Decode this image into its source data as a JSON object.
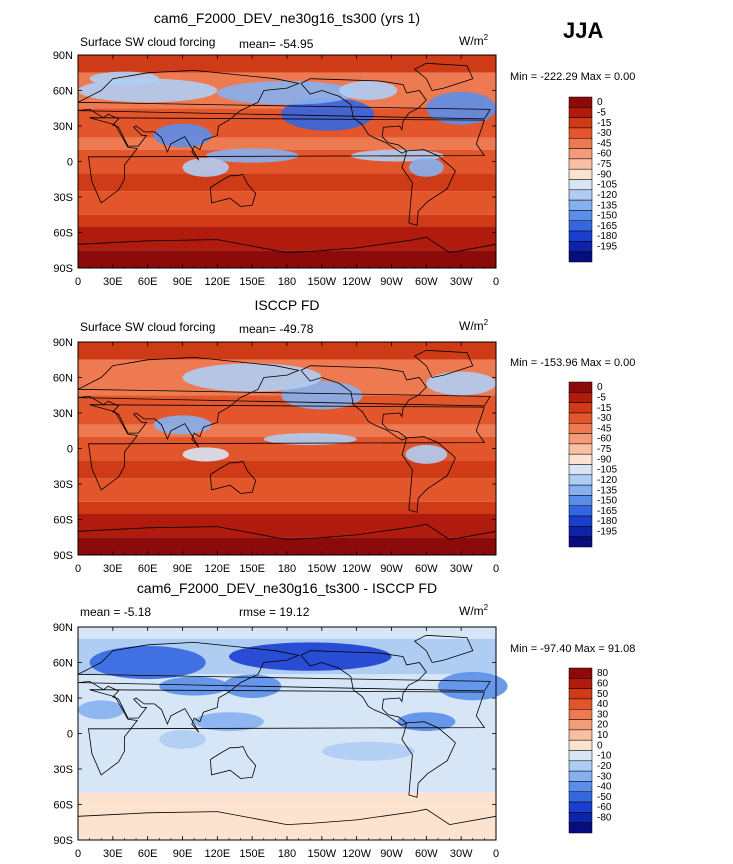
{
  "season": "JJA",
  "unit": "W/m",
  "unit_sup": "2",
  "panels": [
    {
      "title": "cam6_F2000_DEV_ne30g16_ts300 (yrs 1)",
      "left": "Surface SW cloud forcing",
      "mid": "mean=  -54.95",
      "minmax": "Min = -222.29  Max =    0.00"
    },
    {
      "title": "ISCCP FD",
      "left": "Surface SW cloud forcing",
      "mid": "mean=  -49.78",
      "minmax": "Min = -153.96  Max =    0.00"
    },
    {
      "title": "cam6_F2000_DEV_ne30g16_ts300 - ISCCP FD",
      "left": "mean =   -5.18",
      "mid": "rmse =   19.12",
      "minmax": "Min =  -97.40  Max =   91.08"
    }
  ],
  "chart_data": [
    {
      "type": "heatmap",
      "title": "cam6_F2000_DEV_ne30g16_ts300 (yrs 1)",
      "variable": "Surface SW cloud forcing",
      "units": "W/m2",
      "mean": -54.95,
      "min": -222.29,
      "max": 0.0,
      "x_ticks": [
        "0",
        "30E",
        "60E",
        "90E",
        "120E",
        "150E",
        "180",
        "150W",
        "120W",
        "90W",
        "60W",
        "30W",
        "0"
      ],
      "y_ticks": [
        "90N",
        "60N",
        "30N",
        "0",
        "30S",
        "60S",
        "90S"
      ],
      "xlim": [
        0,
        360
      ],
      "ylim": [
        -90,
        90
      ],
      "colorbar_levels": [
        "0",
        "-5",
        "-15",
        "-30",
        "-45",
        "-60",
        "-75",
        "-90",
        "-105",
        "-120",
        "-135",
        "-150",
        "-165",
        "-180",
        "-195"
      ],
      "colors": [
        "#8c0a0a",
        "#b01b0d",
        "#cf3a17",
        "#e3562c",
        "#ee7a52",
        "#f49c79",
        "#f8bfa2",
        "#fce3d0",
        "#d6e6f7",
        "#afcdf3",
        "#86b0ef",
        "#5b8ee8",
        "#3466e0",
        "#1a3fd0",
        "#0e23a8",
        "#060e7d"
      ]
    },
    {
      "type": "heatmap",
      "title": "ISCCP FD",
      "variable": "Surface SW cloud forcing",
      "units": "W/m2",
      "mean": -49.78,
      "min": -153.96,
      "max": 0.0,
      "x_ticks": [
        "0",
        "30E",
        "60E",
        "90E",
        "120E",
        "150E",
        "180",
        "150W",
        "120W",
        "90W",
        "60W",
        "30W",
        "0"
      ],
      "y_ticks": [
        "90N",
        "60N",
        "30N",
        "0",
        "30S",
        "60S",
        "90S"
      ],
      "xlim": [
        0,
        360
      ],
      "ylim": [
        -90,
        90
      ],
      "colorbar_levels": [
        "0",
        "-5",
        "-15",
        "-30",
        "-45",
        "-60",
        "-75",
        "-90",
        "-105",
        "-120",
        "-135",
        "-150",
        "-165",
        "-180",
        "-195"
      ],
      "colors": [
        "#8c0a0a",
        "#b01b0d",
        "#cf3a17",
        "#e3562c",
        "#ee7a52",
        "#f49c79",
        "#f8bfa2",
        "#fce3d0",
        "#d6e6f7",
        "#afcdf3",
        "#86b0ef",
        "#5b8ee8",
        "#3466e0",
        "#1a3fd0",
        "#0e23a8",
        "#060e7d"
      ]
    },
    {
      "type": "heatmap",
      "title": "cam6_F2000_DEV_ne30g16_ts300 - ISCCP FD",
      "units": "W/m2",
      "mean": -5.18,
      "rmse": 19.12,
      "min": -97.4,
      "max": 91.08,
      "x_ticks": [
        "0",
        "30E",
        "60E",
        "90E",
        "120E",
        "150E",
        "180",
        "150W",
        "120W",
        "90W",
        "60W",
        "30W",
        "0"
      ],
      "y_ticks": [
        "90N",
        "60N",
        "30N",
        "0",
        "30S",
        "60S",
        "90S"
      ],
      "xlim": [
        0,
        360
      ],
      "ylim": [
        -90,
        90
      ],
      "colorbar_levels": [
        "80",
        "60",
        "50",
        "40",
        "30",
        "20",
        "10",
        "0",
        "-10",
        "-20",
        "-30",
        "-40",
        "-50",
        "-60",
        "-80"
      ],
      "colors": [
        "#8c0a0a",
        "#b01b0d",
        "#cf3a17",
        "#e3562c",
        "#ee7a52",
        "#f49c79",
        "#f8bfa2",
        "#fce3d0",
        "#d6e6f7",
        "#afcdf3",
        "#86b0ef",
        "#5b8ee8",
        "#3466e0",
        "#1a3fd0",
        "#0e23a8",
        "#060e7d"
      ]
    }
  ]
}
